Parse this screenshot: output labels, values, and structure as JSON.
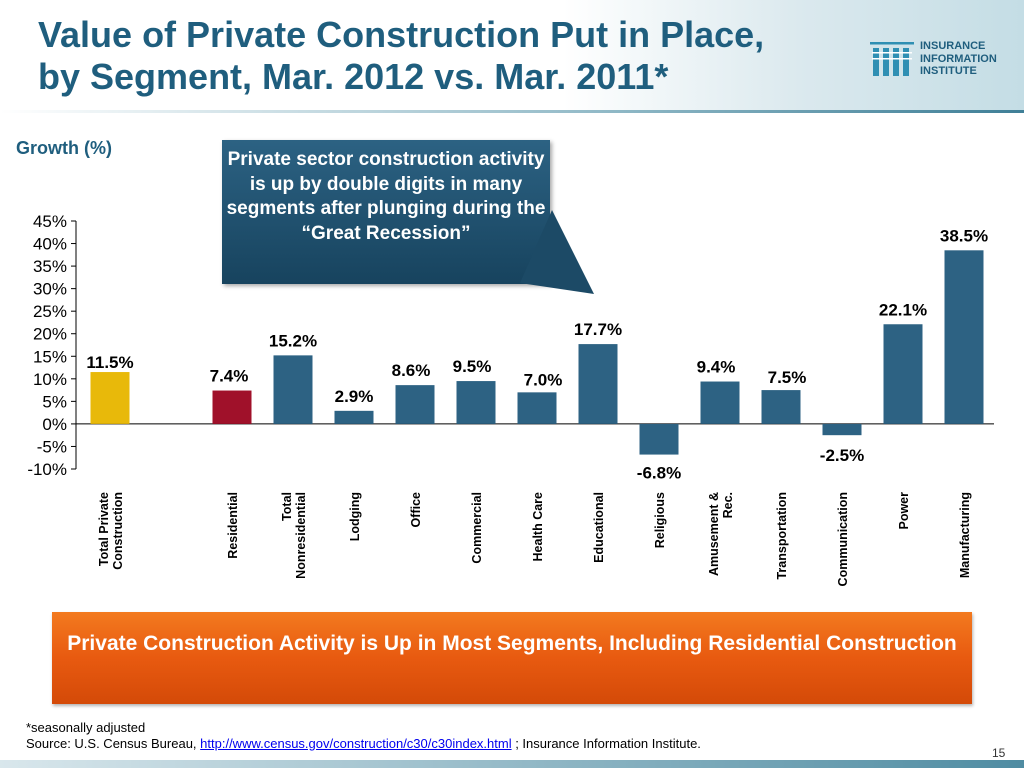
{
  "slide": {
    "title": "Value of Private Construction Put in Place,\nby Segment,  Mar. 2012 vs. Mar. 2011*",
    "page_number": "15"
  },
  "logo": {
    "line1": "INSURANCE",
    "line2": "INFORMATION",
    "line3": "INSTITUTE"
  },
  "callout": {
    "text": "Private sector construction activity is up by double digits in many segments after plunging during the “Great Recession”"
  },
  "banner": {
    "text": "Private Construction Activity is Up in Most  Segments, Including Residential Construction"
  },
  "footer": {
    "footnote": "*seasonally adjusted",
    "source_prefix": "Source: U.S. Census Bureau, ",
    "source_link": "http://www.census.gov/construction/c30/c30index.html",
    "source_suffix": " ; Insurance Information Institute."
  },
  "chart_data": {
    "type": "bar",
    "ylabel": "Growth (%)",
    "ylim": [
      -10,
      45
    ],
    "yticks": [
      45,
      40,
      35,
      30,
      25,
      20,
      15,
      10,
      5,
      0,
      -5,
      -10
    ],
    "ytick_labels": [
      "45%",
      "40%",
      "35%",
      "30%",
      "25%",
      "20%",
      "15%",
      "10%",
      "5%",
      "0%",
      "-5%",
      "-10%"
    ],
    "categories": [
      "Total Private\nConstruction",
      "Residential",
      "Total\nNonresidential",
      "Lodging",
      "Office",
      "Commercial",
      "Health Care",
      "Educational",
      "Religious",
      "Amusement &\nRec.",
      "Transportation",
      "Communication",
      "Power",
      "Manufacturing"
    ],
    "values": [
      11.5,
      7.4,
      15.2,
      2.9,
      8.6,
      9.5,
      7.0,
      17.7,
      -6.8,
      9.4,
      7.5,
      -2.5,
      22.1,
      38.5
    ],
    "value_labels": [
      "11.5%",
      "7.4%",
      "15.2%",
      "2.9%",
      "8.6%",
      "9.5%",
      "7.0%",
      "17.7%",
      "-6.8%",
      "9.4%",
      "7.5%",
      "-2.5%",
      "22.1%",
      "38.5%"
    ],
    "colors": [
      "#e8b90a",
      "#a0112a",
      "#2d6283",
      "#2d6283",
      "#2d6283",
      "#2d6283",
      "#2d6283",
      "#2d6283",
      "#2d6283",
      "#2d6283",
      "#2d6283",
      "#2d6283",
      "#2d6283",
      "#2d6283"
    ],
    "grid": false,
    "legend": "none"
  }
}
